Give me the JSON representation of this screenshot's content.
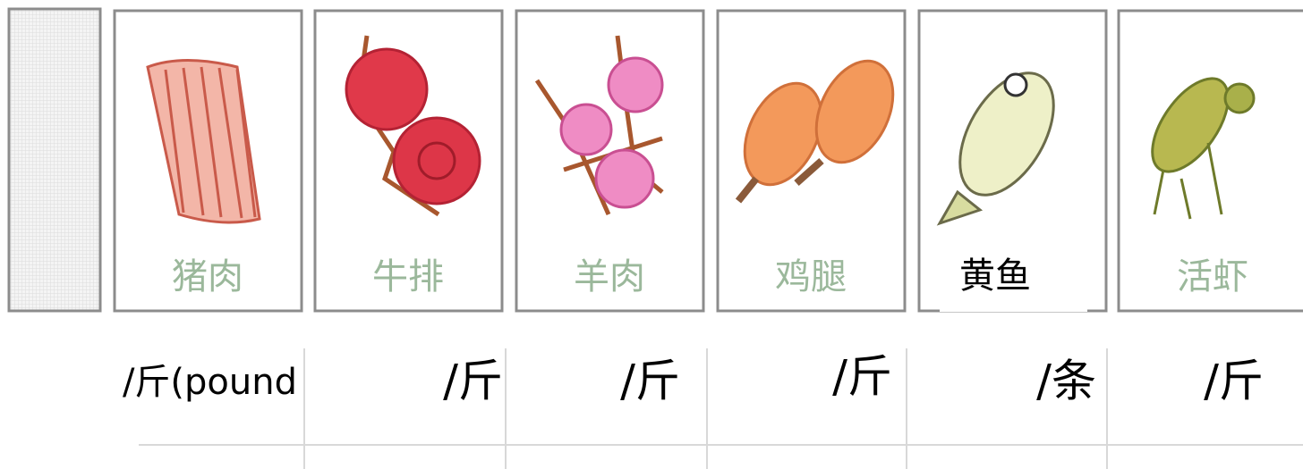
{
  "cards": [
    {
      "label": "猪肉"
    },
    {
      "label": "牛排"
    },
    {
      "label": "羊肉"
    },
    {
      "label": "鸡腿"
    },
    {
      "label": "黄鱼"
    },
    {
      "label": "活虾"
    }
  ],
  "units": [
    "/斤(pound",
    "/斤",
    "/斤",
    "/斤",
    "/条",
    "/斤"
  ]
}
